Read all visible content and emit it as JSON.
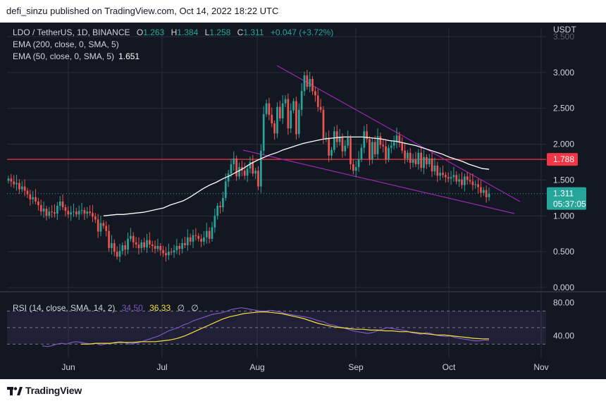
{
  "header": {
    "text": "defi_sinzu published on TradingView.com, Oct 14, 2022 18:22 UTC"
  },
  "legend": {
    "symbol": "LDO / TetherUS, 1D, BINANCE",
    "o_label": "O",
    "o": "1.263",
    "h_label": "H",
    "h": "1.384",
    "l_label": "L",
    "l": "1.258",
    "c_label": "C",
    "c": "1.311",
    "change": "+0.047 (+3.72%)",
    "ema200": "EMA (200, close, 0, SMA, 5)",
    "ema50": "EMA (50, close, 0, SMA, 5)",
    "ema50_value": "1.651"
  },
  "rsi_legend": {
    "label": "RSI (14, close, SMA, 14, 2)",
    "rsi": "34.50",
    "ma": "36.33",
    "na1": "∅",
    "na2": "∅"
  },
  "footer": {
    "brand": "TradingView",
    "logo_icon": "tradingview-logo-icon"
  },
  "colors": {
    "bg": "#131722",
    "up": "#26a69a",
    "down": "#ef5350",
    "ema": "#ffffff",
    "trend": "#9c27b0",
    "resistance": "#f23645",
    "rsi": "#7e57c2",
    "rsi_ma": "#f7e03c",
    "grid": "#2a2e39",
    "text": "#d1d4dc"
  },
  "chart_data": {
    "type": "candlestick",
    "price_axis_label": "USDT",
    "yticks": [
      "3.500",
      "3.000",
      "2.500",
      "2.000",
      "1.500",
      "1.000",
      "0.500",
      "0.000"
    ],
    "ylim": [
      0,
      3.5
    ],
    "xticks": [
      "Jun",
      "Jul",
      "Aug",
      "Sep",
      "Oct",
      "Nov"
    ],
    "horizontal_line": {
      "value": 1.788,
      "label": "1.788"
    },
    "current_price": {
      "value": 1.311,
      "label": "1.311",
      "countdown": "05:37:05"
    },
    "close": [
      1.52,
      1.48,
      1.44,
      1.46,
      1.37,
      1.41,
      1.35,
      1.3,
      1.23,
      1.26,
      1.2,
      1.15,
      1.06,
      1.1,
      1.0,
      1.06,
      1.05,
      1.03,
      1.14,
      1.2,
      1.12,
      1.07,
      1.02,
      1.05,
      1.06,
      1.02,
      1.07,
      1.08,
      1.03,
      1.06,
      1.04,
      0.99,
      0.95,
      0.78,
      0.9,
      0.86,
      0.79,
      0.55,
      0.62,
      0.5,
      0.43,
      0.51,
      0.59,
      0.53,
      0.68,
      0.72,
      0.63,
      0.6,
      0.55,
      0.63,
      0.56,
      0.66,
      0.6,
      0.58,
      0.54,
      0.58,
      0.52,
      0.48,
      0.45,
      0.5,
      0.49,
      0.52,
      0.58,
      0.54,
      0.62,
      0.59,
      0.7,
      0.64,
      0.73,
      0.72,
      0.68,
      0.64,
      0.7,
      0.79,
      0.68,
      0.84,
      1.0,
      1.14,
      1.12,
      1.25,
      1.48,
      1.59,
      1.72,
      1.8,
      1.55,
      1.68,
      1.63,
      1.56,
      1.66,
      1.75,
      1.59,
      1.63,
      1.41,
      1.91,
      2.42,
      2.57,
      2.41,
      2.29,
      2.15,
      2.52,
      2.36,
      2.57,
      2.63,
      2.22,
      2.47,
      2.6,
      2.14,
      2.48,
      2.74,
      2.96,
      2.8,
      2.91,
      2.74,
      2.68,
      2.52,
      2.48,
      2.08,
      2.09,
      1.84,
      1.92,
      2.18,
      2.03,
      2.1,
      1.9,
      1.98,
      2.09,
      1.72,
      1.63,
      1.68,
      1.79,
      1.95,
      2.18,
      2.07,
      1.79,
      2.03,
      1.86,
      2.11,
      1.99,
      1.97,
      1.79,
      1.95,
      1.98,
      2.03,
      2.12,
      2.02,
      1.91,
      1.8,
      1.88,
      1.74,
      1.78,
      1.72,
      1.88,
      1.67,
      1.82,
      1.72,
      1.8,
      1.62,
      1.7,
      1.56,
      1.6,
      1.57,
      1.54,
      1.52,
      1.54,
      1.57,
      1.48,
      1.51,
      1.43,
      1.55,
      1.5,
      1.48,
      1.43,
      1.44,
      1.4,
      1.32,
      1.36,
      1.26,
      1.31
    ],
    "ema50": [
      1.0,
      1.01,
      1.02,
      1.02,
      1.03,
      1.04,
      1.05,
      1.07,
      1.09,
      1.11,
      1.15,
      1.18,
      1.21,
      1.26,
      1.32,
      1.38,
      1.43,
      1.47,
      1.52,
      1.56,
      1.61,
      1.66,
      1.72,
      1.77,
      1.81,
      1.85,
      1.88,
      1.92,
      1.95,
      1.98,
      2.01,
      2.03,
      2.05,
      2.07,
      2.08,
      2.09,
      2.1,
      2.1,
      2.1,
      2.1,
      2.09,
      2.08,
      2.07,
      2.05,
      2.04,
      2.02,
      2.0,
      1.98,
      1.95,
      1.92,
      1.89,
      1.86,
      1.82,
      1.79,
      1.76,
      1.72,
      1.69,
      1.66,
      1.65
    ],
    "ema50_x_start": 35,
    "rsi_axis": [
      "80.00",
      "40.00"
    ],
    "rsi_ylim": [
      20,
      90
    ],
    "rsi": [
      28,
      27,
      28,
      30,
      31,
      30,
      32,
      33,
      32,
      31,
      30,
      31,
      29,
      30,
      31,
      32,
      33,
      32,
      30,
      31,
      32,
      34,
      36,
      38,
      40,
      43,
      46,
      48,
      50,
      53,
      55,
      58,
      60,
      62,
      64,
      66,
      67,
      68,
      70,
      72,
      73,
      74,
      73,
      72,
      71,
      70,
      70,
      71,
      70,
      69,
      67,
      66,
      65,
      64,
      63,
      62,
      60,
      58,
      57,
      54,
      53,
      51,
      50,
      48,
      46,
      45,
      44,
      43,
      44,
      46,
      48,
      50,
      49,
      48,
      47,
      46,
      44,
      43,
      42,
      44,
      43,
      41,
      40,
      39,
      40,
      38,
      37,
      36,
      35,
      34,
      34,
      35,
      34.5
    ],
    "rsi_ma": [
      30,
      30,
      31,
      31,
      31,
      32,
      32,
      32,
      33,
      33,
      33,
      34,
      35,
      37,
      40,
      44,
      48,
      52,
      56,
      60,
      63,
      65,
      67,
      68,
      69,
      69,
      68,
      67,
      65,
      63,
      61,
      58,
      55,
      53,
      51,
      50,
      49,
      48,
      48,
      47,
      47,
      46,
      46,
      45,
      45,
      44,
      43,
      42,
      41,
      41,
      40,
      39,
      38,
      37,
      36.5,
      36.3
    ]
  }
}
